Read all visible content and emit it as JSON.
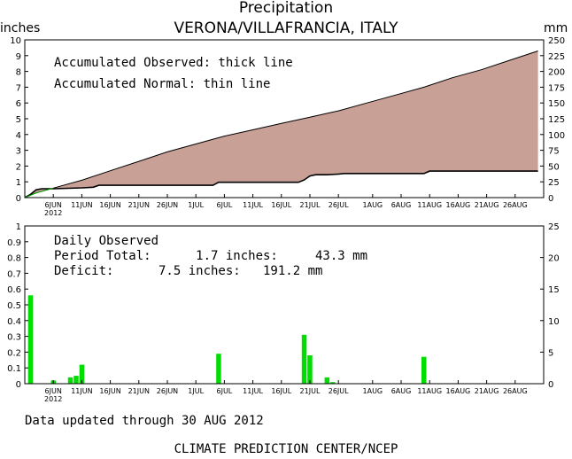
{
  "header": {
    "title": "Precipitation",
    "station": "VERONA/VILLAFRANCIA, ITALY",
    "left_unit": "inches",
    "right_unit": "mm"
  },
  "top_panel": {
    "note_observed": "Accumulated Observed: thick line",
    "note_normal": "Accumulated Normal: thin line"
  },
  "bottom_panel": {
    "heading": "Daily Observed",
    "period_total": "Period Total:      1.7 inches:     43.3 mm",
    "deficit": "Deficit:      7.5 inches:   191.2 mm"
  },
  "footer": {
    "updated": "Data updated through 30 AUG 2012",
    "credit": "CLIMATE PREDICTION CENTER/NCEP"
  },
  "chart_data": [
    {
      "type": "area",
      "x_tick_labels": [
        "6JUN",
        "11JUN",
        "16JUN",
        "21JUN",
        "26JUN",
        "1JUL",
        "6JUL",
        "11JUL",
        "16JUL",
        "21JUL",
        "26JUL",
        "1AUG",
        "6AUG",
        "11AUG",
        "16AUG",
        "21AUG",
        "26AUG"
      ],
      "x_sub_label": "2012",
      "x_tick_days": [
        5,
        10,
        15,
        20,
        25,
        30,
        35,
        40,
        45,
        50,
        55,
        61,
        66,
        71,
        76,
        81,
        86
      ],
      "xlim": [
        0,
        91
      ],
      "ylim_left": [
        0,
        10
      ],
      "yticks_left": [
        0,
        1,
        2,
        3,
        4,
        5,
        6,
        7,
        8,
        9,
        10
      ],
      "ylim_right": [
        0,
        250
      ],
      "yticks_right": [
        0,
        25,
        50,
        75,
        100,
        125,
        150,
        175,
        200,
        225,
        250
      ],
      "fill_color": "#c8a096",
      "observed_color": "#000000",
      "normal_color": "#00aa00",
      "series": [
        {
          "name": "Accumulated Observed",
          "x": [
            0,
            1,
            2,
            3,
            5,
            10,
            12,
            13,
            15,
            20,
            25,
            30,
            33,
            34,
            35,
            40,
            45,
            48,
            49,
            50,
            51,
            53,
            55,
            56,
            60,
            65,
            70,
            71,
            75,
            80,
            85,
            90
          ],
          "y": [
            0,
            0.2,
            0.5,
            0.56,
            0.56,
            0.62,
            0.66,
            0.78,
            0.78,
            0.78,
            0.78,
            0.78,
            0.78,
            0.97,
            0.97,
            0.97,
            0.97,
            0.97,
            1.12,
            1.37,
            1.45,
            1.45,
            1.49,
            1.53,
            1.53,
            1.53,
            1.53,
            1.68,
            1.68,
            1.68,
            1.68,
            1.68
          ]
        },
        {
          "name": "Accumulated Normal",
          "x": [
            0,
            2,
            5,
            10,
            15,
            20,
            25,
            30,
            35,
            40,
            45,
            50,
            55,
            60,
            65,
            70,
            75,
            80,
            85,
            90
          ],
          "y": [
            0,
            0.3,
            0.6,
            1.1,
            1.7,
            2.3,
            2.9,
            3.4,
            3.9,
            4.3,
            4.7,
            5.1,
            5.5,
            6.0,
            6.5,
            7.0,
            7.6,
            8.1,
            8.7,
            9.3
          ]
        }
      ]
    },
    {
      "type": "bar",
      "x_tick_labels": [
        "6JUN",
        "11JUN",
        "16JUN",
        "21JUN",
        "26JUN",
        "1JUL",
        "6JUL",
        "11JUL",
        "16JUL",
        "21JUL",
        "26JUL",
        "1AUG",
        "6AUG",
        "11AUG",
        "16AUG",
        "21AUG",
        "26AUG"
      ],
      "x_sub_label": "2012",
      "x_tick_days": [
        5,
        10,
        15,
        20,
        25,
        30,
        35,
        40,
        45,
        50,
        55,
        61,
        66,
        71,
        76,
        81,
        86
      ],
      "xlim": [
        0,
        91
      ],
      "ylim_left": [
        0,
        1
      ],
      "yticks_left": [
        0,
        0.1,
        0.2,
        0.3,
        0.4,
        0.5,
        0.6,
        0.7,
        0.8,
        0.9,
        1
      ],
      "ylim_right": [
        0,
        25
      ],
      "yticks_right": [
        0,
        5,
        10,
        15,
        20,
        25
      ],
      "bar_color": "#00dd00",
      "series": [
        {
          "name": "Daily Observed",
          "x": [
            1,
            5,
            8,
            9,
            10,
            34,
            49,
            50,
            53,
            54,
            70
          ],
          "y": [
            0.56,
            0.02,
            0.04,
            0.05,
            0.12,
            0.19,
            0.31,
            0.18,
            0.04,
            0.01,
            0.17
          ]
        }
      ]
    }
  ]
}
